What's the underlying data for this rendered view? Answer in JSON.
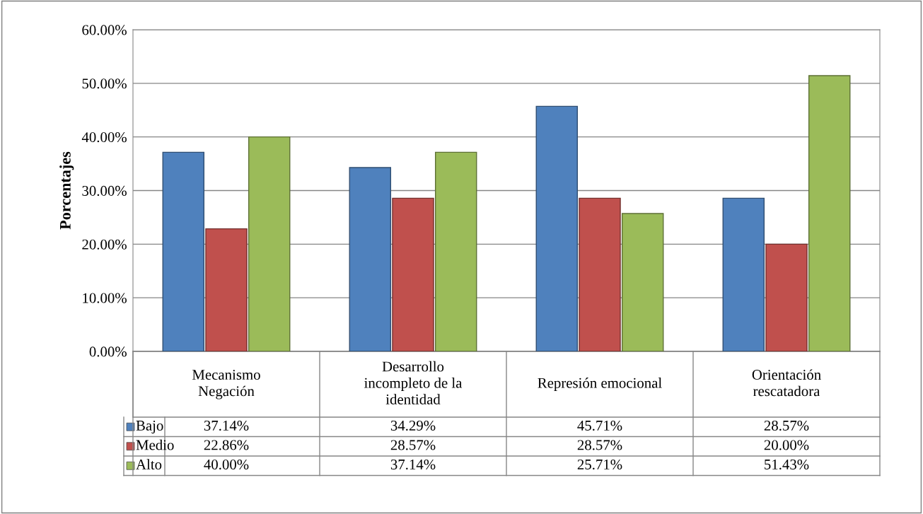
{
  "chart_data": {
    "type": "bar",
    "ylabel": "Porcentajes",
    "categories": [
      "Mecanismo\nNegación",
      "Desarrollo\nincompleto de la\nidentidad",
      "Represión emocional",
      "Orientación\nrescatadora"
    ],
    "series": [
      {
        "name": "Bajo",
        "color": "#4f81bd",
        "values": [
          37.14,
          34.29,
          45.71,
          28.57
        ]
      },
      {
        "name": "Medio",
        "color": "#c0504d",
        "values": [
          22.86,
          28.57,
          28.57,
          20.0
        ]
      },
      {
        "name": "Alto",
        "color": "#9bbb59",
        "values": [
          40.0,
          37.14,
          25.71,
          51.43
        ]
      }
    ],
    "ylim": [
      0,
      60
    ],
    "yticks": [
      {
        "value": 0,
        "label": "0.00%"
      },
      {
        "value": 10,
        "label": "10.00%"
      },
      {
        "value": 20,
        "label": "20.00%"
      },
      {
        "value": 30,
        "label": "30.00%"
      },
      {
        "value": 40,
        "label": "40.00%"
      },
      {
        "value": 50,
        "label": "50.00%"
      },
      {
        "value": 60,
        "label": "60.00%"
      }
    ],
    "grid": "y",
    "legend": "bottom left",
    "value_labels": [
      [
        "37.14%",
        "34.29%",
        "45.71%",
        "28.57%"
      ],
      [
        "22.86%",
        "28.57%",
        "28.57%",
        "20.00%"
      ],
      [
        "40.00%",
        "37.14%",
        "25.71%",
        "51.43%"
      ]
    ]
  }
}
